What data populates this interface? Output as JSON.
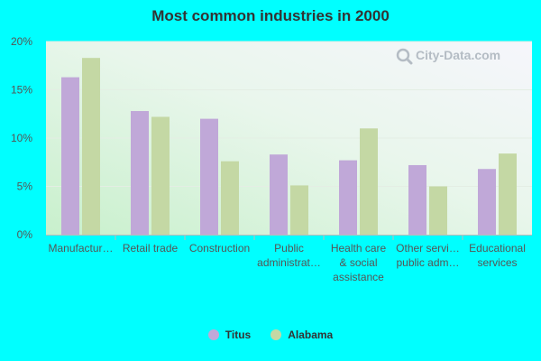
{
  "chart_data": {
    "type": "bar",
    "title": "Most common industries in 2000",
    "categories": [
      [
        "Manufactur…"
      ],
      [
        "Retail trade"
      ],
      [
        "Construction"
      ],
      [
        "Public",
        "administrat…"
      ],
      [
        "Health care",
        "& social",
        "assistance"
      ],
      [
        "Other servi…",
        "public adm…"
      ],
      [
        "Educational",
        "services"
      ]
    ],
    "series": [
      {
        "name": "Titus",
        "color": "#c0a8d8",
        "values": [
          16.3,
          12.8,
          12.0,
          8.3,
          7.7,
          7.2,
          6.8
        ]
      },
      {
        "name": "Alabama",
        "color": "#c4d8a4",
        "values": [
          18.3,
          12.2,
          7.6,
          5.1,
          11.0,
          5.0,
          8.4
        ]
      }
    ],
    "ylim": [
      0,
      20
    ],
    "yticks": [
      0,
      5,
      10,
      15,
      20
    ],
    "ytick_suffix": "%",
    "xlabel": "",
    "ylabel": "",
    "grid": true,
    "legend_position": "bottom"
  },
  "watermark": {
    "text": "City-Data.com",
    "icon": "magnifier-icon"
  }
}
